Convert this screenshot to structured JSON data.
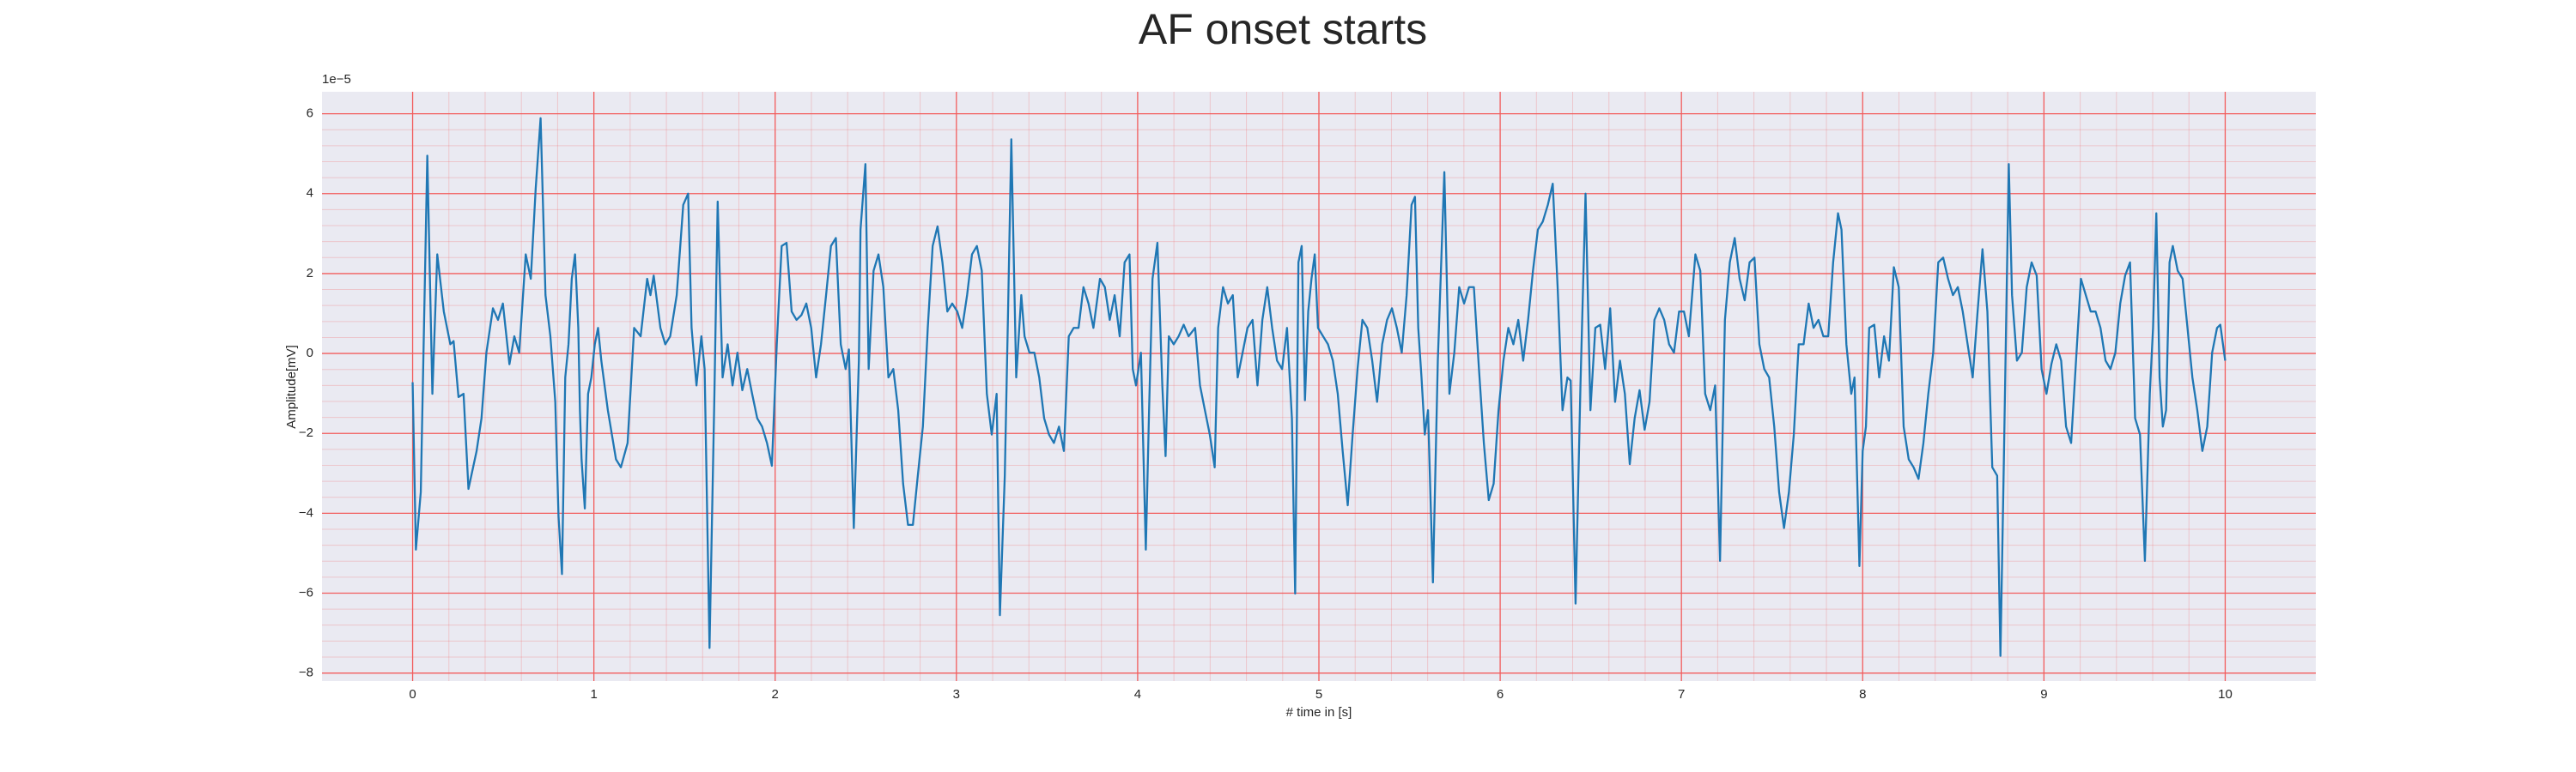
{
  "chart_data": {
    "type": "line",
    "title": "AF onset starts",
    "xlabel": "# time in [s]",
    "ylabel": "Amplitude[mV]",
    "y_offset_text": "1e−5",
    "color": "#1f77b4",
    "grid": true,
    "grid_color": "#f25c5c",
    "minor_grid": true,
    "background": "#eaeaf2",
    "xlim": [
      -0.5,
      10.5
    ],
    "ylim": [
      -8.2,
      6.55
    ],
    "xticks": [
      0,
      1,
      2,
      3,
      4,
      5,
      6,
      7,
      8,
      9,
      10
    ],
    "yticks": [
      {
        "value": -8,
        "label": "−8"
      },
      {
        "value": -6,
        "label": "−6"
      },
      {
        "value": -4,
        "label": "−4"
      },
      {
        "value": -2,
        "label": "−2"
      },
      0,
      2,
      4,
      6
    ],
    "x": [
      0,
      0.018,
      0.045,
      0.081,
      0.109,
      0.136,
      0.172,
      0.208,
      0.226,
      0.253,
      0.281,
      0.308,
      0.353,
      0.38,
      0.407,
      0.443,
      0.471,
      0.498,
      0.534,
      0.561,
      0.588,
      0.624,
      0.652,
      0.679,
      0.706,
      0.733,
      0.76,
      0.787,
      0.805,
      0.824,
      0.842,
      0.86,
      0.878,
      0.896,
      0.914,
      0.923,
      0.932,
      0.95,
      0.968,
      0.986,
      1.005,
      1.023,
      1.041,
      1.077,
      1.122,
      1.149,
      1.186,
      1.222,
      1.258,
      1.294,
      1.312,
      1.33,
      1.367,
      1.394,
      1.421,
      1.457,
      1.493,
      1.52,
      1.539,
      1.566,
      1.593,
      1.611,
      1.638,
      1.665,
      1.683,
      1.71,
      1.738,
      1.765,
      1.792,
      1.819,
      1.846,
      1.873,
      1.901,
      1.928,
      1.955,
      1.982,
      2.009,
      2.036,
      2.063,
      2.091,
      2.118,
      2.145,
      2.172,
      2.199,
      2.226,
      2.253,
      2.281,
      2.308,
      2.335,
      2.362,
      2.389,
      2.407,
      2.434,
      2.462,
      2.471,
      2.498,
      2.516,
      2.543,
      2.57,
      2.597,
      2.625,
      2.652,
      2.679,
      2.706,
      2.733,
      2.76,
      2.787,
      2.815,
      2.842,
      2.869,
      2.896,
      2.923,
      2.95,
      2.977,
      3.005,
      3.032,
      3.059,
      3.086,
      3.113,
      3.14,
      3.168,
      3.195,
      3.222,
      3.24,
      3.267,
      3.285,
      3.303,
      3.33,
      3.358,
      3.376,
      3.403,
      3.43,
      3.457,
      3.484,
      3.511,
      3.538,
      3.566,
      3.593,
      3.62,
      3.647,
      3.674,
      3.701,
      3.729,
      3.756,
      3.792,
      3.819,
      3.846,
      3.873,
      3.901,
      3.928,
      3.955,
      3.973,
      3.991,
      4.018,
      4.045,
      4.063,
      4.082,
      4.109,
      4.136,
      4.154,
      4.172,
      4.199,
      4.226,
      4.254,
      4.281,
      4.317,
      4.344,
      4.371,
      4.398,
      4.425,
      4.444,
      4.471,
      4.498,
      4.525,
      4.552,
      4.579,
      4.606,
      4.634,
      4.661,
      4.688,
      4.715,
      4.742,
      4.769,
      4.797,
      4.824,
      4.851,
      4.869,
      4.887,
      4.905,
      4.923,
      4.941,
      4.959,
      4.977,
      4.995,
      5.023,
      5.05,
      5.077,
      5.104,
      5.131,
      5.159,
      5.186,
      5.213,
      5.24,
      5.267,
      5.294,
      5.321,
      5.349,
      5.376,
      5.403,
      5.43,
      5.457,
      5.484,
      5.511,
      5.53,
      5.548,
      5.566,
      5.584,
      5.602,
      5.629,
      5.656,
      5.692,
      5.72,
      5.747,
      5.774,
      5.801,
      5.828,
      5.855,
      5.883,
      5.91,
      5.937,
      5.964,
      5.991,
      6.018,
      6.045,
      6.073,
      6.1,
      6.127,
      6.154,
      6.181,
      6.208,
      6.235,
      6.263,
      6.29,
      6.317,
      6.344,
      6.371,
      6.389,
      6.416,
      6.443,
      6.471,
      6.498,
      6.525,
      6.552,
      6.579,
      6.607,
      6.634,
      6.661,
      6.688,
      6.715,
      6.742,
      6.769,
      6.797,
      6.824,
      6.851,
      6.878,
      6.905,
      6.932,
      6.959,
      6.987,
      7.014,
      7.041,
      7.077,
      7.104,
      7.131,
      7.159,
      7.186,
      7.213,
      7.24,
      7.267,
      7.294,
      7.321,
      7.349,
      7.376,
      7.403,
      7.43,
      7.457,
      7.484,
      7.512,
      7.539,
      7.566,
      7.593,
      7.62,
      7.647,
      7.674,
      7.702,
      7.729,
      7.756,
      7.783,
      7.81,
      7.837,
      7.864,
      7.883,
      7.91,
      7.937,
      7.955,
      7.982,
      8,
      8.018,
      8.036,
      8.064,
      8.091,
      8.118,
      8.145,
      8.172,
      8.199,
      8.226,
      8.254,
      8.281,
      8.308,
      8.335,
      8.362,
      8.389,
      8.417,
      8.444,
      8.471,
      8.498,
      8.525,
      8.552,
      8.579,
      8.607,
      8.634,
      8.661,
      8.688,
      8.715,
      8.742,
      8.76,
      8.779,
      8.806,
      8.824,
      8.851,
      8.878,
      8.905,
      8.932,
      8.96,
      8.987,
      9.014,
      9.041,
      9.068,
      9.095,
      9.122,
      9.15,
      9.177,
      9.204,
      9.231,
      9.258,
      9.285,
      9.312,
      9.34,
      9.367,
      9.394,
      9.421,
      9.448,
      9.475,
      9.503,
      9.53,
      9.557,
      9.584,
      9.602,
      9.62,
      9.638,
      9.656,
      9.674,
      9.693,
      9.711,
      9.738,
      9.765,
      9.792,
      9.819,
      9.846,
      9.874,
      9.901,
      9.928,
      9.955,
      9.973,
      10
    ],
    "values": [
      -0.72,
      -4.91,
      -3.47,
      4.95,
      -1.01,
      2.48,
      1.05,
      0.23,
      0.31,
      -1.09,
      -1.01,
      -3.39,
      -2.44,
      -1.62,
      0.02,
      1.13,
      0.84,
      1.25,
      -0.27,
      0.43,
      0.02,
      2.48,
      1.87,
      4.13,
      5.89,
      1.46,
      0.43,
      -1.21,
      -4.08,
      -5.52,
      -0.6,
      0.23,
      1.87,
      2.48,
      0.64,
      -1.42,
      -2.65,
      -3.88,
      -1.01,
      -0.6,
      0.23,
      0.64,
      -0.18,
      -1.42,
      -2.65,
      -2.85,
      -2.24,
      0.64,
      0.43,
      1.87,
      1.46,
      1.95,
      0.64,
      0.23,
      0.43,
      1.46,
      3.72,
      4,
      0.64,
      -0.8,
      0.43,
      -0.39,
      -7.37,
      -1.01,
      3.8,
      -0.6,
      0.23,
      -0.8,
      0.02,
      -0.92,
      -0.39,
      -1.01,
      -1.62,
      -1.83,
      -2.24,
      -2.81,
      0.23,
      2.69,
      2.77,
      1.05,
      0.84,
      0.96,
      1.25,
      0.64,
      -0.6,
      0.23,
      1.46,
      2.69,
      2.89,
      0.23,
      -0.39,
      0.1,
      -4.37,
      -0.18,
      3.1,
      4.74,
      -0.39,
      2.07,
      2.48,
      1.66,
      -0.6,
      -0.39,
      -1.42,
      -3.26,
      -4.29,
      -4.29,
      -3.06,
      -1.83,
      0.64,
      2.69,
      3.18,
      2.28,
      1.05,
      1.25,
      1.05,
      0.64,
      1.46,
      2.48,
      2.69,
      2.07,
      -1.01,
      -2.03,
      -1.01,
      -6.55,
      -3.06,
      1.05,
      5.36,
      -0.6,
      1.46,
      0.43,
      0.02,
      0.02,
      -0.6,
      -1.62,
      -2.03,
      -2.24,
      -1.83,
      -2.44,
      0.43,
      0.64,
      0.64,
      1.66,
      1.25,
      0.64,
      1.87,
      1.66,
      0.84,
      1.46,
      0.43,
      2.28,
      2.48,
      -0.39,
      -0.8,
      0.02,
      -4.91,
      -1.42,
      1.87,
      2.77,
      -0.8,
      -2.57,
      0.43,
      0.23,
      0.43,
      0.72,
      0.43,
      0.64,
      -0.8,
      -1.42,
      -2.03,
      -2.85,
      0.64,
      1.66,
      1.25,
      1.46,
      -0.6,
      0.02,
      0.64,
      0.84,
      -0.8,
      0.84,
      1.66,
      0.64,
      -0.18,
      -0.39,
      0.64,
      -1.62,
      -6.01,
      2.28,
      2.69,
      -1.17,
      1.05,
      1.87,
      2.48,
      0.64,
      0.43,
      0.23,
      -0.18,
      -1.01,
      -2.44,
      -3.8,
      -2.03,
      -0.39,
      0.84,
      0.64,
      -0.18,
      -1.21,
      0.23,
      0.84,
      1.13,
      0.64,
      0.02,
      1.46,
      3.72,
      3.92,
      0.64,
      -0.6,
      -2.03,
      -1.42,
      -5.73,
      -0.18,
      4.54,
      -1.01,
      0.02,
      1.66,
      1.25,
      1.66,
      1.66,
      -0.39,
      -2.24,
      -3.67,
      -3.26,
      -1.42,
      -0.18,
      0.64,
      0.23,
      0.84,
      -0.18,
      0.84,
      2.07,
      3.1,
      3.3,
      3.72,
      4.25,
      1.66,
      -1.42,
      -0.6,
      -0.68,
      -6.26,
      -0.8,
      4,
      -1.42,
      0.64,
      0.72,
      -0.39,
      1.13,
      -1.21,
      -0.18,
      -1.01,
      -2.77,
      -1.62,
      -0.92,
      -1.91,
      -1.21,
      0.84,
      1.13,
      0.84,
      0.23,
      0.02,
      1.05,
      1.05,
      0.43,
      2.48,
      2.07,
      -1.01,
      -1.42,
      -0.8,
      -5.19,
      0.84,
      2.28,
      2.89,
      1.87,
      1.33,
      2.28,
      2.4,
      0.23,
      -0.39,
      -0.6,
      -1.83,
      -3.47,
      -4.37,
      -3.47,
      -2.03,
      0.23,
      0.23,
      1.25,
      0.64,
      0.84,
      0.43,
      0.43,
      2.28,
      3.51,
      3.1,
      0.23,
      -1.01,
      -0.6,
      -5.32,
      -2.44,
      -1.83,
      0.64,
      0.72,
      -0.6,
      0.43,
      -0.18,
      2.16,
      1.66,
      -1.83,
      -2.65,
      -2.85,
      -3.14,
      -2.24,
      -1.01,
      0.02,
      2.28,
      2.4,
      1.87,
      1.46,
      1.66,
      1.05,
      0.23,
      -0.6,
      1.05,
      2.61,
      1.05,
      -2.85,
      -3.06,
      -7.57,
      -2.65,
      4.74,
      1.46,
      -0.18,
      0.02,
      1.66,
      2.28,
      1.95,
      -0.39,
      -1.01,
      -0.27,
      0.23,
      -0.18,
      -1.83,
      -2.24,
      -0.18,
      1.87,
      1.46,
      1.05,
      1.05,
      0.64,
      -0.18,
      -0.39,
      0.02,
      1.25,
      1.95,
      2.28,
      -1.62,
      -2.03,
      -5.19,
      -1.01,
      0.64,
      3.51,
      -0.6,
      -1.83,
      -1.42,
      2.28,
      2.69,
      2.07,
      1.87,
      0.64,
      -0.6,
      -1.42,
      -2.44,
      -1.83,
      0.02,
      0.64,
      0.72,
      -0.18
    ]
  }
}
